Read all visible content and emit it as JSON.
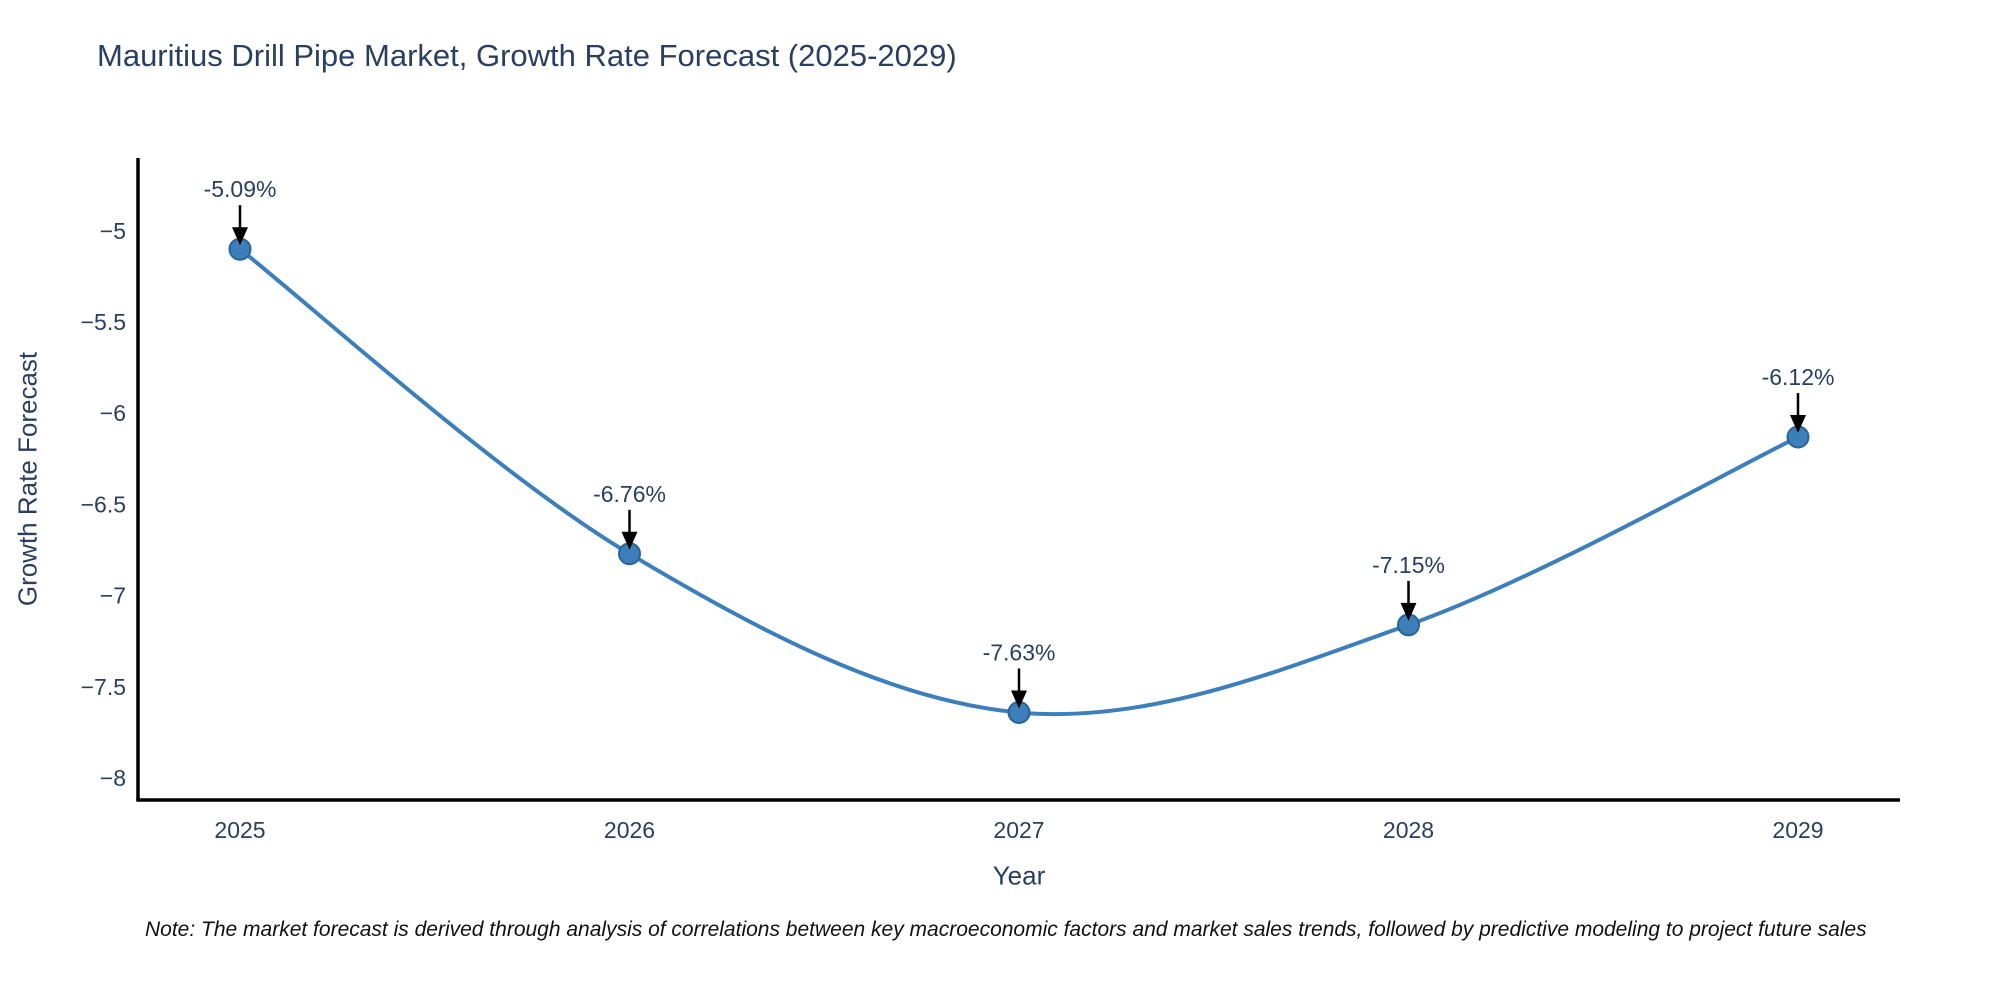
{
  "title": "Mauritius Drill Pipe Market, Growth Rate Forecast (2025-2029)",
  "note": "Note: The market forecast is derived through analysis of correlations between key macroeconomic factors and market sales trends, followed by predictive modeling to project future sales",
  "chart_data": {
    "type": "line",
    "title": "Mauritius Drill Pipe Market, Growth Rate Forecast (2025-2029)",
    "xlabel": "Year",
    "ylabel": "Growth Rate Forecast",
    "categories": [
      "2025",
      "2026",
      "2027",
      "2028",
      "2029"
    ],
    "series": [
      {
        "name": "Growth Rate Forecast",
        "values": [
          -5.09,
          -6.76,
          -7.63,
          -7.15,
          -6.12
        ],
        "point_labels": [
          "-5.09%",
          "-6.76%",
          "-7.63%",
          "-7.15%",
          "-6.12%"
        ]
      }
    ],
    "line_shape": "spline",
    "grid": false,
    "legend_position": "none",
    "yticks": [
      -5,
      -5.5,
      -6,
      -6.5,
      -7,
      -7.5,
      -8
    ],
    "ytick_labels": [
      "−5",
      "−5.5",
      "−6",
      "−6.5",
      "−7",
      "−7.5",
      "−8"
    ],
    "ylim": [
      -8.11,
      -4.59
    ],
    "colors": {
      "line": "#3d7fba",
      "marker_fill": "#3d7fba",
      "marker_edge": "#2a6396",
      "arrow": "#000000",
      "axis_line": "#000000",
      "text": "#2a3f5f",
      "note_text": "#111111",
      "background": "#ffffff"
    }
  }
}
